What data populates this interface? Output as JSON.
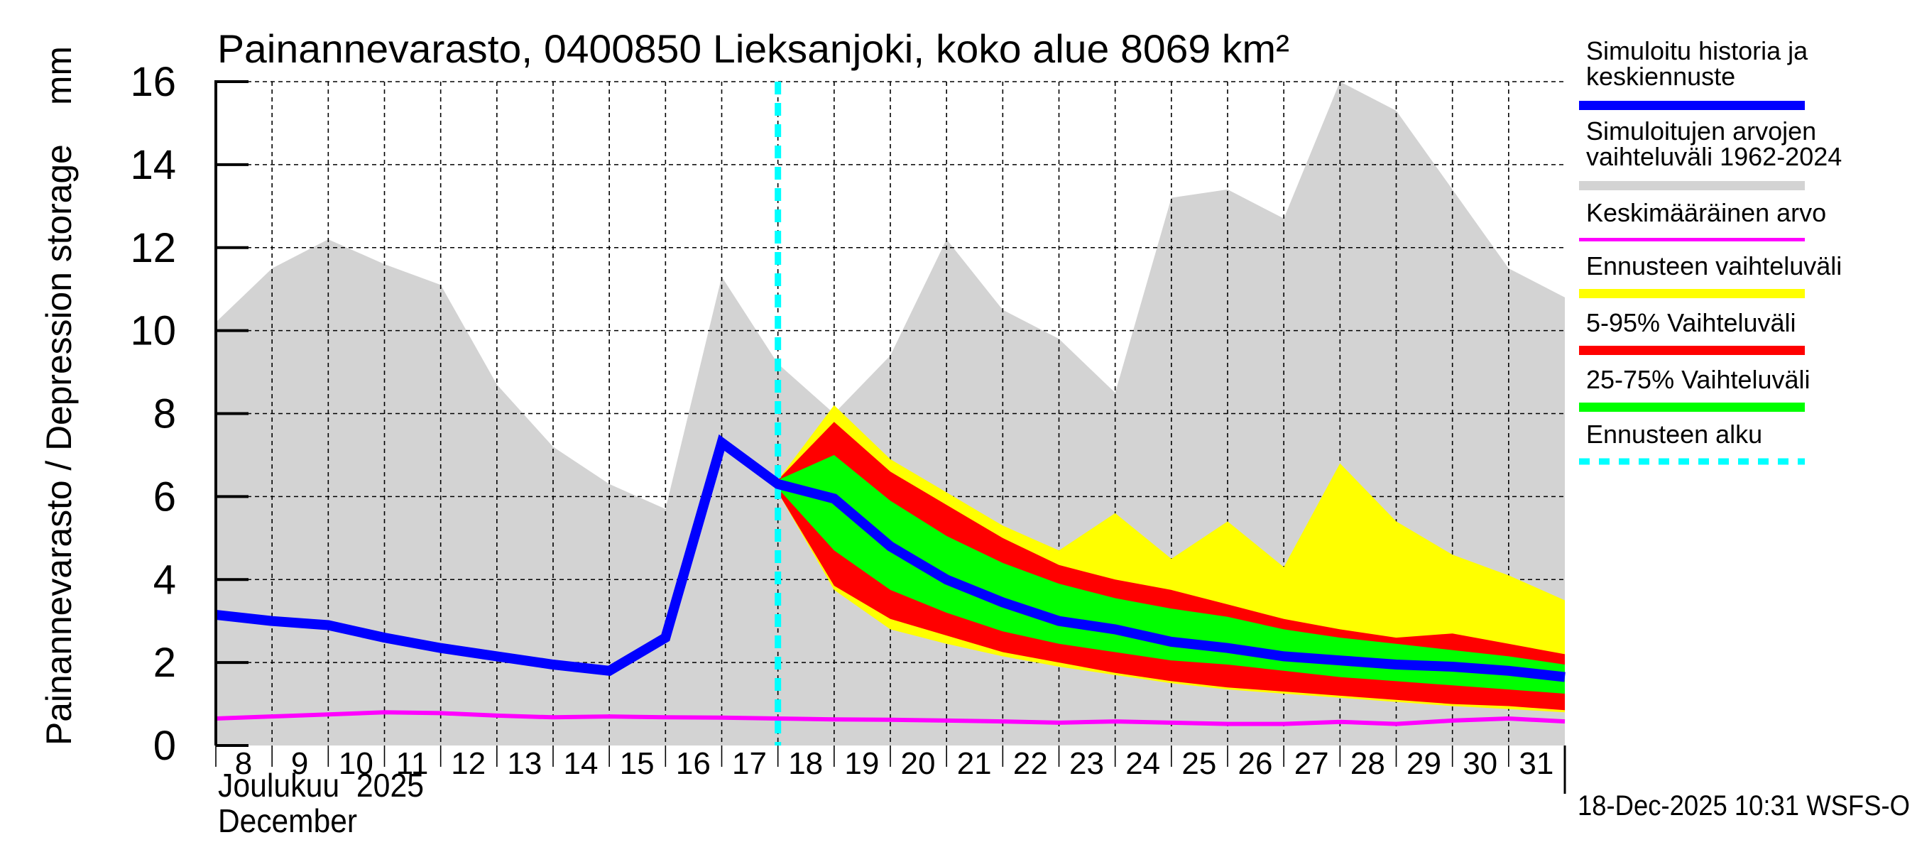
{
  "chart_data": {
    "type": "area",
    "title": "Painannevarasto, 0400850 Lieksanjoki, koko alue 8069 km²",
    "ylabel": "Painannevarasto / Depression storage    mm",
    "xlabel_line1": "Joulukuu  2025",
    "xlabel_line2": "December",
    "footer": "18-Dec-2025 10:31 WSFS-O",
    "ylim": [
      0,
      16
    ],
    "xlim": [
      8,
      32
    ],
    "yticks": [
      0,
      2,
      4,
      6,
      8,
      10,
      12,
      14,
      16
    ],
    "ytick_labels": [
      "0",
      "2",
      "4",
      "6",
      "8",
      "10",
      "12",
      "14",
      "16"
    ],
    "xticks": [
      8,
      9,
      10,
      11,
      12,
      13,
      14,
      15,
      16,
      17,
      18,
      19,
      20,
      21,
      22,
      23,
      24,
      25,
      26,
      27,
      28,
      29,
      30,
      31
    ],
    "xtick_labels": [
      "8",
      "9",
      "10",
      "11",
      "12",
      "13",
      "14",
      "15",
      "16",
      "17",
      "18",
      "19",
      "20",
      "21",
      "22",
      "23",
      "24",
      "25",
      "26",
      "27",
      "28",
      "29",
      "30",
      "31"
    ],
    "grid": true,
    "forecast_start": 18,
    "x": [
      8,
      9,
      10,
      11,
      12,
      13,
      14,
      15,
      16,
      17,
      18,
      19,
      20,
      21,
      22,
      23,
      24,
      25,
      26,
      27,
      28,
      29,
      30,
      31,
      32
    ],
    "hist_range": {
      "upper": [
        10.2,
        11.5,
        12.2,
        11.6,
        11.1,
        8.7,
        7.2,
        6.3,
        5.7,
        11.3,
        9.2,
        8.0,
        9.4,
        12.2,
        10.5,
        9.8,
        8.5,
        13.2,
        13.4,
        12.7,
        16.0,
        15.3,
        13.4,
        11.5,
        10.8
      ],
      "lower": [
        0,
        0,
        0,
        0,
        0,
        0,
        0,
        0,
        0,
        0,
        0,
        0,
        0,
        0,
        0,
        0,
        0,
        0,
        0,
        0,
        0,
        0,
        0,
        0,
        0
      ]
    },
    "forecast_x": [
      18,
      19,
      20,
      21,
      22,
      23,
      24,
      25,
      26,
      27,
      28,
      29,
      30,
      31,
      32
    ],
    "forecast_range": {
      "upper": [
        6.4,
        8.2,
        6.9,
        6.1,
        5.3,
        4.7,
        5.6,
        4.5,
        5.4,
        4.3,
        6.8,
        5.4,
        4.6,
        4.1,
        3.5
      ],
      "lower": [
        6.1,
        3.75,
        2.8,
        2.45,
        2.15,
        1.9,
        1.7,
        1.5,
        1.35,
        1.25,
        1.15,
        1.05,
        0.95,
        0.88,
        0.8
      ]
    },
    "p5_95": {
      "upper": [
        6.4,
        7.8,
        6.6,
        5.8,
        5.0,
        4.35,
        4.0,
        3.75,
        3.4,
        3.05,
        2.8,
        2.6,
        2.7,
        2.45,
        2.2
      ],
      "lower": [
        6.1,
        3.85,
        3.05,
        2.65,
        2.25,
        2.0,
        1.75,
        1.55,
        1.4,
        1.3,
        1.2,
        1.1,
        1.0,
        0.95,
        0.85
      ]
    },
    "p25_75": {
      "upper": [
        6.4,
        7.0,
        5.9,
        5.05,
        4.4,
        3.9,
        3.55,
        3.3,
        3.1,
        2.8,
        2.6,
        2.45,
        2.3,
        2.15,
        1.95
      ],
      "lower": [
        6.2,
        4.7,
        3.75,
        3.2,
        2.75,
        2.45,
        2.25,
        2.05,
        1.95,
        1.8,
        1.65,
        1.55,
        1.45,
        1.35,
        1.25
      ]
    },
    "series": [
      {
        "name": "Simuloitu historia ja keskiennuste",
        "color": "#0000ff",
        "values": [
          3.15,
          3.0,
          2.9,
          2.6,
          2.35,
          2.15,
          1.95,
          1.8,
          2.6,
          7.3,
          6.3,
          5.95,
          4.8,
          4.0,
          3.45,
          3.0,
          2.8,
          2.5,
          2.35,
          2.15,
          2.05,
          1.95,
          1.9,
          1.8,
          1.65
        ]
      },
      {
        "name": "Keskimääräinen arvo",
        "color": "#ff00ff",
        "values": [
          0.65,
          0.7,
          0.75,
          0.8,
          0.78,
          0.72,
          0.68,
          0.7,
          0.68,
          0.67,
          0.65,
          0.63,
          0.62,
          0.6,
          0.58,
          0.55,
          0.58,
          0.55,
          0.52,
          0.52,
          0.57,
          0.52,
          0.6,
          0.65,
          0.58
        ]
      }
    ],
    "legend": [
      {
        "label_line1": "Simuloitu historia ja",
        "label_line2": "keskiennuste",
        "color": "#0000ff",
        "style": "thick"
      },
      {
        "label_line1": "Simuloitujen arvojen",
        "label_line2": "vaihteluväli 1962-2024",
        "color": "#d3d3d3",
        "style": "thick"
      },
      {
        "label_line1": "Keskimääräinen arvo",
        "label_line2": "",
        "color": "#ff00ff",
        "style": "thin"
      },
      {
        "label_line1": "Ennusteen vaihteluväli",
        "label_line2": "",
        "color": "#ffff00",
        "style": "thick"
      },
      {
        "label_line1": "5-95% Vaihteluväli",
        "label_line2": "",
        "color": "#ff0000",
        "style": "thick"
      },
      {
        "label_line1": "25-75% Vaihteluväli",
        "label_line2": "",
        "color": "#00ff00",
        "style": "thick"
      },
      {
        "label_line1": "Ennusteen alku",
        "label_line2": "",
        "color": "#00ffff",
        "style": "dashed"
      }
    ],
    "legend_position": "right",
    "colors": {
      "hist_range": "#d3d3d3",
      "forecast_range": "#ffff00",
      "p5_95": "#ff0000",
      "p25_75": "#00ff00",
      "forecast_start": "#00ffff"
    }
  }
}
